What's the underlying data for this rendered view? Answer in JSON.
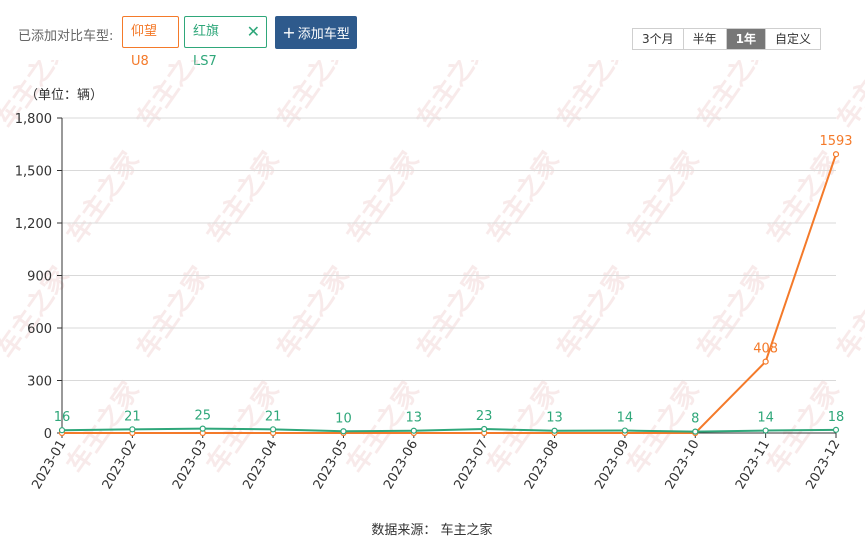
{
  "compare": {
    "label": "已添加对比车型:",
    "models": [
      {
        "name": "仰望U8",
        "color": "#f47a2a",
        "removable": false
      },
      {
        "name": "红旗LS7",
        "color": "#2fa77a",
        "removable": true
      }
    ],
    "add_label": "添加车型",
    "close_glyph": "✕",
    "plus_glyph": "+"
  },
  "range_options": [
    {
      "label": "3个月",
      "active": false
    },
    {
      "label": "半年",
      "active": false
    },
    {
      "label": "1年",
      "active": true
    },
    {
      "label": "自定义",
      "active": false
    }
  ],
  "chart_data": {
    "type": "line",
    "unit_label": "（单位：辆）",
    "categories": [
      "2023-01",
      "2023-02",
      "2023-03",
      "2023-04",
      "2023-05",
      "2023-06",
      "2023-07",
      "2023-08",
      "2023-09",
      "2023-10",
      "2023-11",
      "2023-12"
    ],
    "series": [
      {
        "name": "仰望U8",
        "color": "#f47a2a",
        "values": [
          0,
          0,
          0,
          0,
          0,
          0,
          0,
          0,
          0,
          0,
          408,
          1593
        ],
        "labels": [
          null,
          null,
          null,
          null,
          null,
          null,
          null,
          null,
          null,
          null,
          "408",
          "1593"
        ]
      },
      {
        "name": "红旗LS7",
        "color": "#2fa77a",
        "values": [
          16,
          21,
          25,
          21,
          10,
          13,
          23,
          13,
          14,
          8,
          14,
          18
        ],
        "labels": [
          "16",
          "21",
          "25",
          "21",
          "10",
          "13",
          "23",
          "13",
          "14",
          "8",
          "14",
          "18"
        ]
      }
    ],
    "yticks": [
      0,
      300,
      600,
      900,
      1200,
      1500,
      1800
    ],
    "ytick_labels": [
      "0",
      "300",
      "600",
      "900",
      "1,200",
      "1,500",
      "1,800"
    ],
    "ylim": [
      0,
      1800
    ],
    "grid": true,
    "source": "数据来源：  车主之家"
  },
  "watermark_text": "车主之家"
}
